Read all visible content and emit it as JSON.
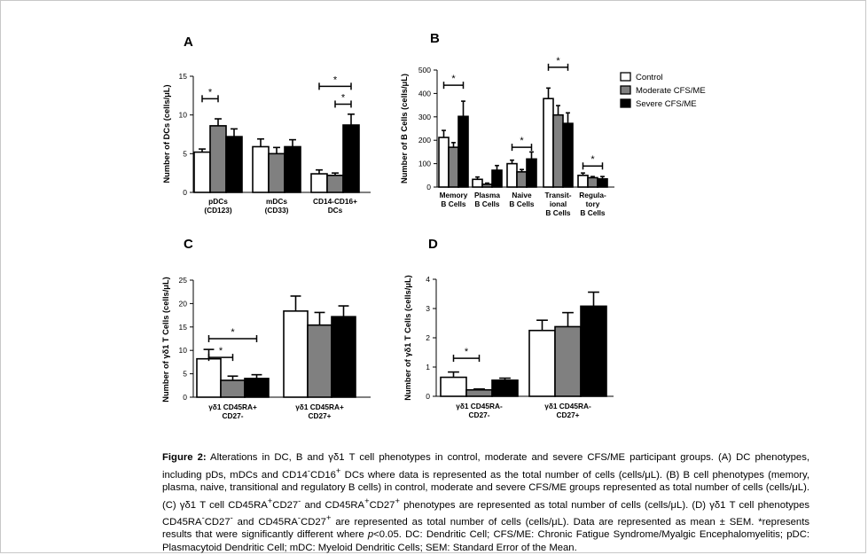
{
  "figure": {
    "caption": {
      "label": "Figure 2:",
      "p1": " Alterations in DC, B and γδ1 T cell phenotypes in control, moderate and severe CFS/ME participant groups. (A) DC phenotypes, including pDs, mDCs and CD14",
      "p1_sup": "-",
      "p2": "CD16",
      "p2_sup": "+",
      "p3": " DCs where data is represented as the total number of cells (cells/μL). (B) B cell phenotypes (memory, plasma, naive, transitional and regulatory B cells) in control, moderate and severe CFS/ME groups represented as total number of cells (cells/μL). (C) γδ1 T cell CD45RA",
      "p3_sup": "+",
      "p4": "CD27",
      "p4_sup": "-",
      "p5": " and CD45RA",
      "p5_sup": "+",
      "p6": "CD27",
      "p6_sup": "+",
      "p7": " phenotypes are represented as total number of cells (cells/μL). (D) γδ1 T cell phenotypes CD45RA",
      "p7_sup": "-",
      "p8": "CD27",
      "p8_sup": "-",
      "p9": " and CD45RA",
      "p9_sup": "-",
      "p10": "CD27",
      "p10_sup": "+",
      "p11": " are represented as total number of cells (cells/μL). Data are represented as mean ± SEM. *represents results that were significantly different where ",
      "p_italic": "p",
      "p12": "<0.05. DC: Dendritic Cell; CFS/ME: Chronic Fatigue Syndrome/Myalgic Encephalomyelitis; pDC: Plasmacytoid Dendritic Cell; mDC: Myeloid Dendritic Cells; SEM: Standard Error of the Mean."
    },
    "legend": {
      "entries": [
        "Control",
        "Moderate  CFS/ME",
        "Severe CFS/ME"
      ],
      "colors": [
        "#ffffff",
        "#808080",
        "#000000"
      ]
    },
    "star": "*"
  },
  "chart_data": [
    {
      "type": "bar",
      "panel_letter": "A",
      "ylabel": "Number of  DCs (cells/μL)",
      "ylim": [
        0,
        15
      ],
      "yticks": [
        "0",
        "5",
        "10",
        "15"
      ],
      "categories": [
        [
          "pDCs",
          "(CD123)"
        ],
        [
          "mDCs",
          "(CD33)"
        ],
        [
          "CD14-CD16+",
          "DCs"
        ]
      ],
      "series": [
        {
          "values": [
            5.2,
            5.9,
            2.4
          ],
          "errors": [
            0.4,
            1.0,
            0.5
          ]
        },
        {
          "values": [
            8.6,
            5.0,
            2.2
          ],
          "errors": [
            0.9,
            0.8,
            0.3
          ]
        },
        {
          "values": [
            7.2,
            5.9,
            8.7
          ],
          "errors": [
            1.0,
            0.9,
            1.4
          ]
        }
      ],
      "significance": [
        {
          "from": [
            0,
            0
          ],
          "to": [
            0,
            1
          ],
          "level": 12.1
        },
        {
          "from": [
            2,
            0
          ],
          "to": [
            2,
            2
          ],
          "level": 13.7
        },
        {
          "from": [
            2,
            1
          ],
          "to": [
            2,
            2
          ],
          "level": 11.4
        }
      ]
    },
    {
      "type": "bar",
      "panel_letter": "B",
      "ylabel": "Number of  B Cells (cells/μL)",
      "ylim": [
        0,
        500
      ],
      "yticks": [
        "0",
        "100",
        "200",
        "300",
        "400",
        "500"
      ],
      "categories": [
        [
          "Memory",
          "B Cells"
        ],
        [
          "Plasma",
          "B Cells"
        ],
        [
          "Naive",
          "B Cells"
        ],
        [
          "Transit-",
          "ional",
          "B Cells"
        ],
        [
          "Regula-",
          "tory",
          "B Cells"
        ]
      ],
      "series": [
        {
          "values": [
            212,
            33,
            100,
            378,
            50
          ],
          "errors": [
            30,
            10,
            15,
            45,
            10
          ]
        },
        {
          "values": [
            170,
            12,
            65,
            308,
            40
          ],
          "errors": [
            20,
            5,
            10,
            40,
            5
          ]
        },
        {
          "values": [
            302,
            72,
            120,
            272,
            35
          ],
          "errors": [
            65,
            20,
            30,
            45,
            10
          ]
        }
      ],
      "significance": [
        {
          "from": [
            0,
            0
          ],
          "to": [
            0,
            2
          ],
          "level": 435
        },
        {
          "from": [
            2,
            0
          ],
          "to": [
            2,
            2
          ],
          "level": 170
        },
        {
          "from": [
            3,
            0
          ],
          "to": [
            3,
            2
          ],
          "level": 512
        },
        {
          "from": [
            4,
            0
          ],
          "to": [
            4,
            2
          ],
          "level": 90
        }
      ]
    },
    {
      "type": "bar",
      "panel_letter": "C",
      "ylabel": "Number of γδ1 T Cells (cells/μL)",
      "ylim": [
        0,
        25
      ],
      "yticks": [
        "0",
        "5",
        "10",
        "15",
        "20",
        "25"
      ],
      "categories": [
        [
          "γδ1 CD45RA+",
          "CD27-"
        ],
        [
          "γδ1 CD45RA+",
          "CD27+"
        ]
      ],
      "series": [
        {
          "values": [
            8.2,
            18.4
          ],
          "errors": [
            2.0,
            3.2
          ]
        },
        {
          "values": [
            3.6,
            15.4
          ],
          "errors": [
            0.9,
            2.7
          ]
        },
        {
          "values": [
            4.0,
            17.2
          ],
          "errors": [
            0.8,
            2.3
          ]
        }
      ],
      "significance": [
        {
          "from": [
            0,
            0
          ],
          "to": [
            0,
            2
          ],
          "level": 12.5
        },
        {
          "from": [
            0,
            0
          ],
          "to": [
            0,
            1
          ],
          "level": 8.5
        }
      ]
    },
    {
      "type": "bar",
      "panel_letter": "D",
      "ylabel": "Number of γδ1 T Cells (cells/μL)",
      "ylim": [
        0,
        4
      ],
      "yticks": [
        "0",
        "1",
        "2",
        "3",
        "4"
      ],
      "categories": [
        [
          "γδ1 CD45RA-",
          "CD27-"
        ],
        [
          "γδ1 CD45RA-",
          "CD27+"
        ]
      ],
      "series": [
        {
          "values": [
            0.65,
            2.25
          ],
          "errors": [
            0.18,
            0.35
          ]
        },
        {
          "values": [
            0.22,
            2.38
          ],
          "errors": [
            0.03,
            0.48
          ]
        },
        {
          "values": [
            0.55,
            3.08
          ],
          "errors": [
            0.07,
            0.48
          ]
        }
      ],
      "significance": [
        {
          "from": [
            0,
            0
          ],
          "to": [
            0,
            1
          ],
          "level": 1.3
        }
      ]
    }
  ]
}
